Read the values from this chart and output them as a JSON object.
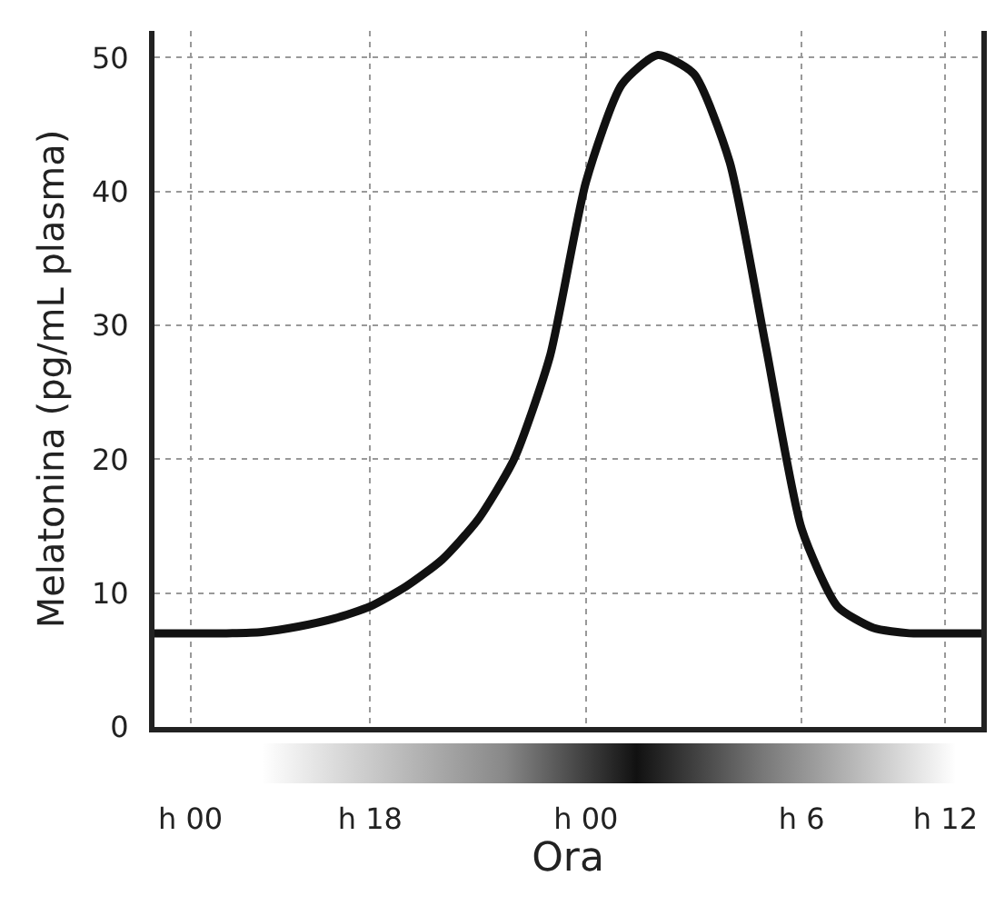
{
  "chart_data": {
    "type": "line",
    "xlabel": "Ora",
    "ylabel": "Melatonina (pg/mL plasma)",
    "categories": [
      null,
      "h 00",
      null,
      null,
      null,
      null,
      "h 18",
      null,
      null,
      null,
      null,
      null,
      "h 00",
      null,
      null,
      null,
      null,
      null,
      "h 6",
      null,
      null,
      null,
      "h 12",
      null
    ],
    "series": [
      {
        "color": "#111111",
        "values": [
          7,
          7,
          7,
          7.1,
          7.5,
          8.1,
          9,
          10.5,
          12.5,
          15.5,
          20,
          27.7,
          40.7,
          48,
          50.2,
          48.8,
          42.2,
          28.5,
          14.8,
          9,
          7.4,
          7,
          7,
          7
        ]
      }
    ],
    "ylim": [
      0,
      52
    ],
    "yticks": [
      0,
      10,
      20,
      30,
      40,
      50
    ],
    "grid": true,
    "marker": "none",
    "line_style": "solid",
    "legend": false
  }
}
